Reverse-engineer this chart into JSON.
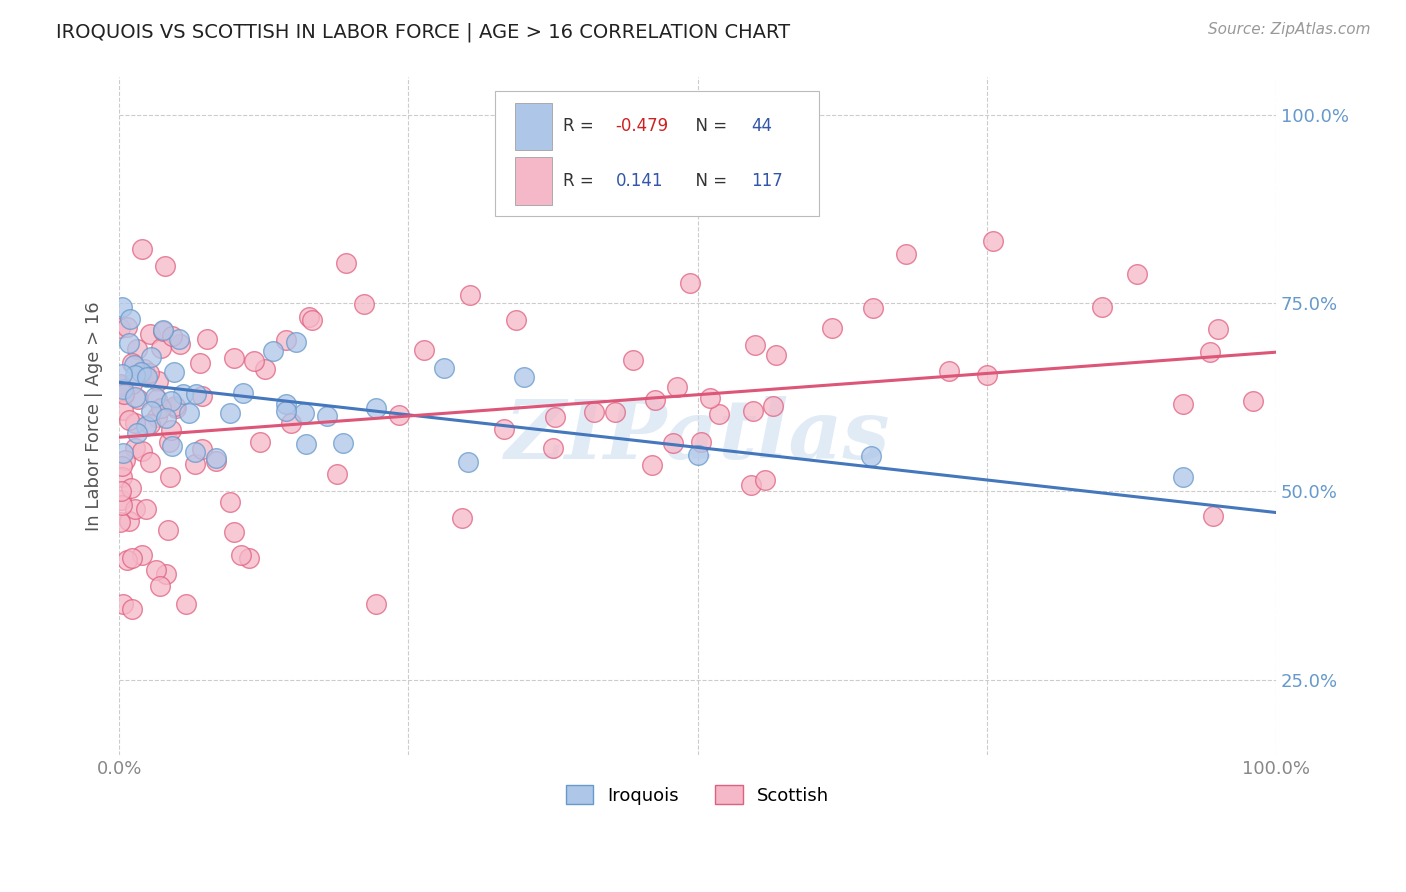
{
  "title": "IROQUOIS VS SCOTTISH IN LABOR FORCE | AGE > 16 CORRELATION CHART",
  "source_text": "Source: ZipAtlas.com",
  "ylabel": "In Labor Force | Age > 16",
  "xlim": [
    0,
    1
  ],
  "ylim": [
    0.15,
    1.05
  ],
  "yticks": [
    0.25,
    0.5,
    0.75,
    1.0
  ],
  "xticks": [
    0.0,
    0.25,
    0.5,
    0.75,
    1.0
  ],
  "x_tick_labels": [
    "0.0%",
    "",
    "",
    "",
    "100.0%"
  ],
  "y_tick_labels_right": [
    "25.0%",
    "50.0%",
    "75.0%",
    "100.0%"
  ],
  "legend_text1": "R = -0.479  N =  44",
  "legend_text2": "R =   0.141  N = 117",
  "iroquois_color": "#aec6e8",
  "iroquois_edge_color": "#6699cc",
  "scottish_color": "#f5b8c8",
  "scottish_edge_color": "#e06080",
  "iroquois_line_color": "#4477bb",
  "scottish_line_color": "#dd5577",
  "background_color": "#ffffff",
  "grid_color": "#cccccc",
  "watermark_text": "ZIPatlas",
  "watermark_color": "#ccdff0",
  "title_color": "#222222",
  "source_color": "#999999",
  "ylabel_color": "#555555",
  "tick_color": "#888888",
  "right_tick_color": "#6699cc",
  "legend_r1_color": "#cc3333",
  "legend_n1_color": "#4455aa",
  "iro_trend_start_y": 0.645,
  "iro_trend_end_y": 0.472,
  "scot_trend_start_y": 0.572,
  "scot_trend_end_y": 0.685
}
